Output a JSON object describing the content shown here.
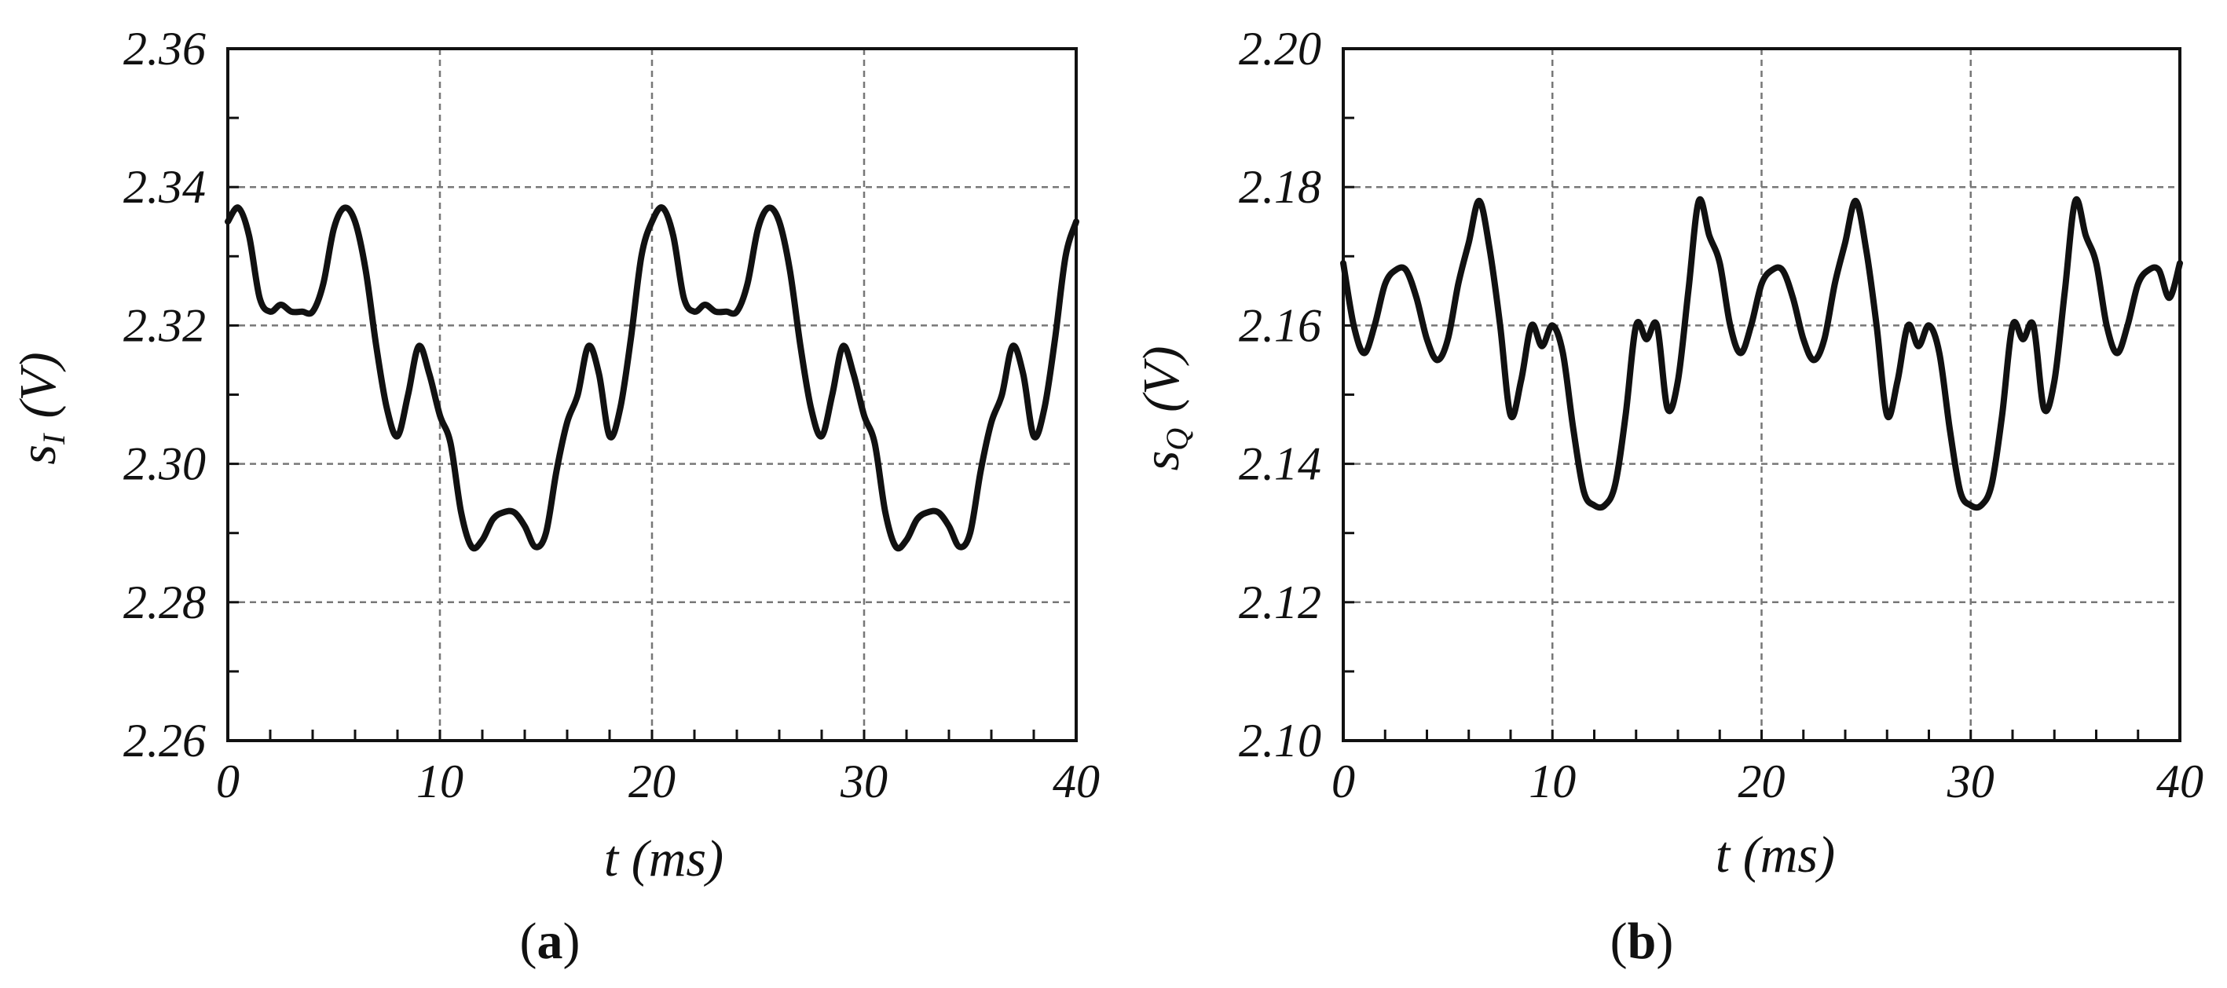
{
  "chart_data": [
    {
      "type": "line",
      "panel_label": "a",
      "xlabel": "t",
      "xlabel_unit": "(ms)",
      "ylabel": "s",
      "ylabel_sub": "I",
      "ylabel_unit": "(V)",
      "xlim": [
        0,
        40
      ],
      "ylim": [
        2.26,
        2.36
      ],
      "xticks": [
        "0",
        "10",
        "20",
        "30",
        "40"
      ],
      "yticks": [
        "2.36",
        "2.34",
        "2.32",
        "2.30",
        "2.28",
        "2.26"
      ],
      "grid": true,
      "series": [
        {
          "x": [
            0,
            0.5,
            1,
            1.5,
            2,
            2.5,
            3,
            3.5,
            4,
            4.5,
            5,
            5.5,
            6,
            6.5,
            7,
            7.5,
            8,
            8.5,
            9,
            9.5,
            10,
            10.5,
            11,
            11.5,
            12,
            12.5,
            13,
            13.5,
            14,
            14.5,
            15,
            15.5,
            16,
            16.5,
            17,
            17.5,
            18,
            18.5,
            19,
            19.5,
            20,
            20.5,
            21,
            21.5,
            22,
            22.5,
            23,
            23.5,
            24,
            24.5,
            25,
            25.5,
            26,
            26.5,
            27,
            27.5,
            28,
            28.5,
            29,
            29.5,
            30,
            30.5,
            31,
            31.5,
            32,
            32.5,
            33,
            33.5,
            34,
            34.5,
            35,
            35.5,
            36,
            36.5,
            37,
            37.5,
            38,
            38.5,
            39,
            39.5,
            40
          ],
          "values": [
            2.335,
            2.337,
            2.333,
            2.324,
            2.322,
            2.323,
            2.322,
            2.322,
            2.322,
            2.326,
            2.334,
            2.337,
            2.335,
            2.328,
            2.317,
            2.308,
            2.304,
            2.31,
            2.317,
            2.313,
            2.307,
            2.303,
            2.293,
            2.288,
            2.289,
            2.292,
            2.293,
            2.293,
            2.291,
            2.288,
            2.29,
            2.299,
            2.306,
            2.31,
            2.317,
            2.313,
            2.304,
            2.308,
            2.318,
            2.33,
            2.335,
            2.337,
            2.333,
            2.324,
            2.322,
            2.323,
            2.322,
            2.322,
            2.322,
            2.326,
            2.334,
            2.337,
            2.335,
            2.328,
            2.317,
            2.308,
            2.304,
            2.31,
            2.317,
            2.313,
            2.307,
            2.303,
            2.293,
            2.288,
            2.289,
            2.292,
            2.293,
            2.293,
            2.291,
            2.288,
            2.29,
            2.299,
            2.306,
            2.31,
            2.317,
            2.313,
            2.304,
            2.308,
            2.318,
            2.33,
            2.335
          ]
        }
      ]
    },
    {
      "type": "line",
      "panel_label": "b",
      "xlabel": "t",
      "xlabel_unit": "(ms)",
      "ylabel": "s",
      "ylabel_sub": "Q",
      "ylabel_unit": "(V)",
      "xlim": [
        0,
        40
      ],
      "ylim": [
        2.1,
        2.2
      ],
      "xticks": [
        "0",
        "10",
        "20",
        "30",
        "40"
      ],
      "yticks": [
        "2.20",
        "2.18",
        "2.16",
        "2.14",
        "2.12",
        "2.10"
      ],
      "grid": true,
      "series": [
        {
          "x": [
            0,
            0.5,
            1,
            1.5,
            2,
            2.5,
            3,
            3.5,
            4,
            4.5,
            5,
            5.5,
            6,
            6.5,
            7,
            7.5,
            8,
            8.5,
            9,
            9.5,
            10,
            10.5,
            11,
            11.5,
            12,
            12.5,
            13,
            13.5,
            14,
            14.5,
            15,
            15.5,
            16,
            16.5,
            17,
            17.5,
            18,
            18.5,
            19,
            19.5,
            20,
            20.5,
            21,
            21.5,
            22,
            22.5,
            23,
            23.5,
            24,
            24.5,
            25,
            25.5,
            26,
            26.5,
            27,
            27.5,
            28,
            28.5,
            29,
            29.5,
            30,
            30.5,
            31,
            31.5,
            32,
            32.5,
            33,
            33.5,
            34,
            34.5,
            35,
            35.5,
            36,
            36.5,
            37,
            37.5,
            38,
            38.5,
            39,
            39.5,
            40
          ],
          "values": [
            2.169,
            2.16,
            2.156,
            2.16,
            2.166,
            2.168,
            2.168,
            2.164,
            2.158,
            2.155,
            2.158,
            2.166,
            2.172,
            2.178,
            2.171,
            2.16,
            2.147,
            2.152,
            2.16,
            2.157,
            2.16,
            2.156,
            2.145,
            2.136,
            2.134,
            2.134,
            2.137,
            2.147,
            2.16,
            2.158,
            2.16,
            2.148,
            2.152,
            2.165,
            2.178,
            2.173,
            2.169,
            2.16,
            2.156,
            2.16,
            2.166,
            2.168,
            2.168,
            2.164,
            2.158,
            2.155,
            2.158,
            2.166,
            2.172,
            2.178,
            2.171,
            2.16,
            2.147,
            2.152,
            2.16,
            2.157,
            2.16,
            2.156,
            2.145,
            2.136,
            2.134,
            2.134,
            2.137,
            2.147,
            2.16,
            2.158,
            2.16,
            2.148,
            2.152,
            2.165,
            2.178,
            2.173,
            2.169,
            2.16,
            2.156,
            2.16,
            2.166,
            2.168,
            2.168,
            2.164,
            2.169
          ]
        }
      ]
    }
  ]
}
